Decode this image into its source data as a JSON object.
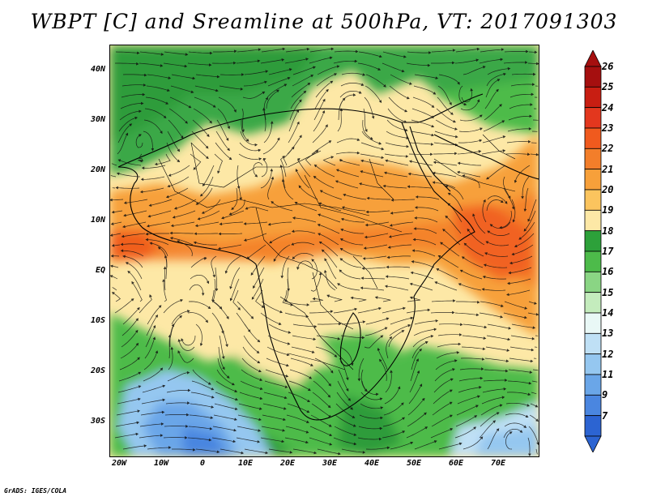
{
  "title": "WBPT [C] and Sreamline at 500hPa, VT: 2017091303",
  "footer": "GrADS: IGES/COLA",
  "lat_labels": [
    "40N",
    "30N",
    "20N",
    "10N",
    "EQ",
    "10S",
    "20S",
    "30S"
  ],
  "lon_labels": [
    "20W",
    "10W",
    "0",
    "10E",
    "20E",
    "30E",
    "40E",
    "50E",
    "60E",
    "70E"
  ],
  "colorbar": {
    "labels": [
      "26",
      "25",
      "24",
      "23",
      "22",
      "21",
      "20",
      "19",
      "18",
      "17",
      "16",
      "15",
      "14",
      "13",
      "12",
      "11",
      "9",
      "7"
    ],
    "colors": [
      "#a50f0f",
      "#c81e12",
      "#e3371e",
      "#f05a1e",
      "#f37e2a",
      "#f7a03a",
      "#fbc45e",
      "#fde8a6",
      "#2da13a",
      "#4dbb4a",
      "#8ad584",
      "#c4ecbd",
      "#e9f8f6",
      "#bfe0f5",
      "#95c7f0",
      "#6aa6e8",
      "#4a86e0",
      "#2c64d2"
    ],
    "arrow_top_color": "#a50f0f",
    "arrow_bottom_color": "#2c64d2"
  }
}
